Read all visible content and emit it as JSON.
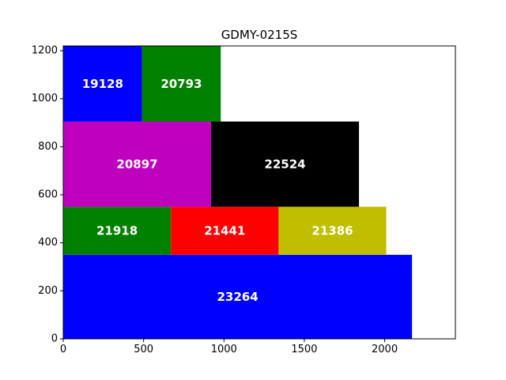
{
  "chart_data": {
    "type": "rectangle-packing",
    "title": "GDMY-0215S",
    "xlim": [
      0,
      2440
    ],
    "ylim": [
      0,
      1220
    ],
    "x_ticks": [
      0,
      500,
      1000,
      1500,
      2000
    ],
    "y_ticks": [
      0,
      200,
      400,
      600,
      800,
      1000,
      1200
    ],
    "grid": false,
    "rectangles": [
      {
        "label": "23264",
        "x": 0,
        "y": 0,
        "w": 2170,
        "h": 350,
        "color": "#0000ff"
      },
      {
        "label": "21918",
        "x": 0,
        "y": 350,
        "w": 670,
        "h": 200,
        "color": "#008000"
      },
      {
        "label": "21441",
        "x": 670,
        "y": 350,
        "w": 670,
        "h": 200,
        "color": "#ff0000"
      },
      {
        "label": "21386",
        "x": 1340,
        "y": 350,
        "w": 670,
        "h": 200,
        "color": "#bfbf00"
      },
      {
        "label": "20897",
        "x": 0,
        "y": 550,
        "w": 920,
        "h": 355,
        "color": "#bf00bf"
      },
      {
        "label": "22524",
        "x": 920,
        "y": 550,
        "w": 920,
        "h": 355,
        "color": "#000000"
      },
      {
        "label": "19128",
        "x": 0,
        "y": 905,
        "w": 490,
        "h": 315,
        "color": "#0000ff"
      },
      {
        "label": "20793",
        "x": 490,
        "y": 905,
        "w": 490,
        "h": 315,
        "color": "#008000"
      }
    ]
  }
}
